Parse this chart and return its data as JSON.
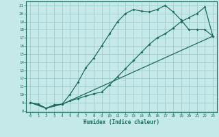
{
  "xlabel": "Humidex (Indice chaleur)",
  "bg_color": "#c5e8e8",
  "grid_color": "#a0cccc",
  "line_color": "#1a6b5a",
  "xlim": [
    -0.5,
    23.5
  ],
  "ylim": [
    7.8,
    21.5
  ],
  "xticks": [
    0,
    1,
    2,
    3,
    4,
    5,
    6,
    7,
    8,
    9,
    10,
    11,
    12,
    13,
    14,
    15,
    16,
    17,
    18,
    19,
    20,
    21,
    22,
    23
  ],
  "yticks": [
    8,
    9,
    10,
    11,
    12,
    13,
    14,
    15,
    16,
    17,
    18,
    19,
    20,
    21
  ],
  "curve1_x": [
    0,
    1,
    2,
    3,
    4,
    5,
    6,
    7,
    8,
    9,
    10,
    11,
    12,
    13,
    14,
    15,
    16,
    17,
    18,
    19,
    20,
    21,
    22,
    23
  ],
  "curve1_y": [
    9.0,
    8.8,
    8.3,
    8.7,
    8.8,
    10.0,
    11.5,
    13.3,
    14.5,
    16.0,
    17.5,
    19.0,
    20.0,
    20.5,
    20.3,
    20.2,
    20.5,
    21.0,
    20.2,
    19.2,
    18.0,
    18.0,
    18.0,
    17.2
  ],
  "curve2_x": [
    0,
    1,
    2,
    3,
    4,
    5,
    6,
    7,
    8,
    9,
    10,
    11,
    12,
    13,
    14,
    15,
    16,
    17,
    18,
    19,
    20,
    21,
    22,
    23
  ],
  "curve2_y": [
    9.0,
    8.8,
    8.3,
    8.7,
    8.8,
    9.2,
    9.5,
    9.8,
    10.1,
    10.3,
    11.2,
    12.2,
    13.2,
    14.2,
    15.2,
    16.2,
    17.0,
    17.5,
    18.2,
    19.0,
    19.5,
    20.0,
    20.8,
    17.2
  ],
  "curve3_x": [
    0,
    2,
    4,
    23
  ],
  "curve3_y": [
    9.0,
    8.3,
    8.8,
    17.2
  ]
}
